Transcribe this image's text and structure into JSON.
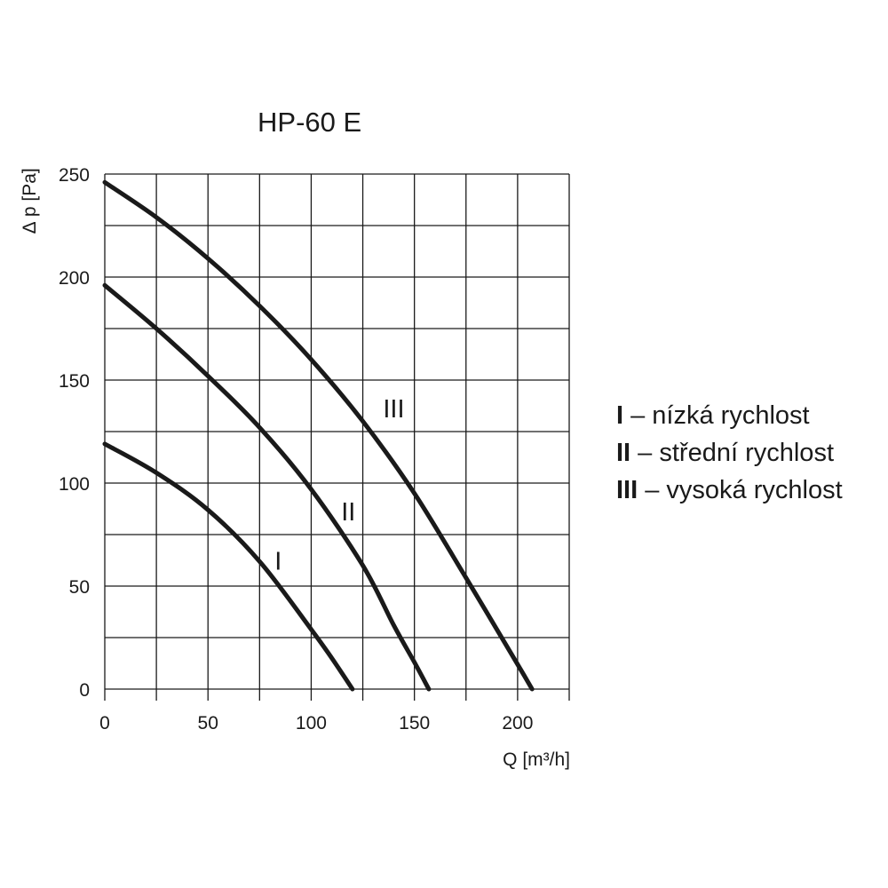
{
  "chart_data": {
    "type": "line",
    "title": "HP-60 E",
    "xlabel": "Q [m³/h]",
    "ylabel": "∆ p [Pa]",
    "xlim": [
      0,
      225
    ],
    "ylim": [
      0,
      250
    ],
    "x_ticks": [
      0,
      50,
      100,
      150,
      200
    ],
    "y_ticks": [
      0,
      50,
      100,
      150,
      200,
      250
    ],
    "x_grid_step": 25,
    "y_grid_step": 25,
    "grid": true,
    "legend_position": "right",
    "series": [
      {
        "name": "I",
        "x": [
          0,
          25,
          50,
          75,
          100,
          110,
          120
        ],
        "y": [
          119,
          105,
          87,
          62,
          29,
          15,
          0
        ]
      },
      {
        "name": "II",
        "x": [
          0,
          25,
          50,
          75,
          100,
          125,
          140,
          150,
          157
        ],
        "y": [
          196,
          175,
          152,
          127,
          97,
          60,
          31,
          13,
          0
        ]
      },
      {
        "name": "III",
        "x": [
          0,
          25,
          50,
          75,
          100,
          125,
          150,
          175,
          200,
          207
        ],
        "y": [
          246,
          229,
          209,
          186,
          160,
          130,
          95,
          54,
          12,
          0
        ]
      }
    ],
    "legend": [
      {
        "key": "I",
        "text": " – nízká rychlost"
      },
      {
        "key": "II",
        "text": " – střední rychlost"
      },
      {
        "key": "III",
        "text": " – vysoká rychlost"
      }
    ]
  }
}
